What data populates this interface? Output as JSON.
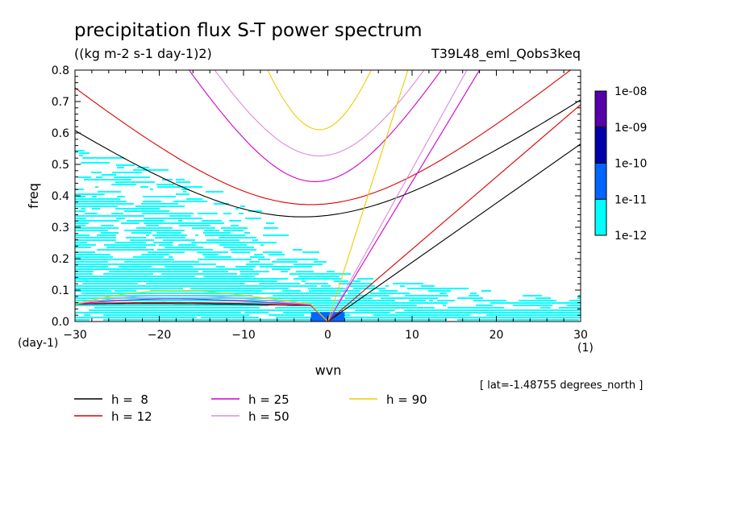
{
  "chart_data": {
    "type": "heatmap",
    "title": "precipitation flux S-T power spectrum",
    "subtitle": "((kg m-2 s-1 day-1)2)",
    "run_label": "T39L48_eml_Qobs3keq",
    "xlabel": "wvn",
    "ylabel": "freq",
    "x_unit": "(1)",
    "y_unit": "(day-1)",
    "annotation": "[ lat=-1.48755 degrees_north ]",
    "xlim": [
      -30,
      30
    ],
    "ylim": [
      0,
      0.8
    ],
    "x_ticks": [
      -30,
      -20,
      -10,
      0,
      10,
      20,
      30
    ],
    "y_ticks": [
      0.0,
      0.1,
      0.2,
      0.3,
      0.4,
      0.5,
      0.6,
      0.7,
      0.8
    ],
    "x_tick_labels": [
      "−30",
      "−20",
      "−10",
      "0",
      "10",
      "20",
      "30"
    ],
    "y_tick_labels": [
      "0.0",
      "0.1",
      "0.2",
      "0.3",
      "0.4",
      "0.5",
      "0.6",
      "0.7",
      "0.8"
    ],
    "colorbar": {
      "levels": [
        "1e-12",
        "1e-11",
        "1e-10",
        "1e-09",
        "1e-08"
      ],
      "colors": [
        "#00ffff",
        "#0066ff",
        "#0000aa",
        "#5500aa"
      ]
    },
    "heatmap_regions": [
      {
        "level": "1e-12 to 1e-11",
        "color": "#00ffff",
        "wvn_range": [
          -30,
          30
        ],
        "freq_max_at_wvn": {
          "-30": 0.55,
          "-20": 0.48,
          "-10": 0.37,
          "0": 0.18,
          "10": 0.12,
          "20": 0.1,
          "30": 0.1
        }
      },
      {
        "level": "1e-11 to 1e-10",
        "color": "#0066ff",
        "wvn_range": [
          -2,
          2
        ],
        "freq_range": [
          0,
          0.03
        ]
      }
    ],
    "series": [
      {
        "name": "h =  8",
        "color": "#000000",
        "kelvin": [
          [
            0,
            0
          ],
          [
            30,
            0.565
          ]
        ],
        "ig_min": 0.333,
        "ig_min_wvn": -3,
        "mrg": [
          0.055,
          0.05
        ]
      },
      {
        "name": "h = 12",
        "color": "#dd0000",
        "kelvin": [
          [
            0,
            0
          ],
          [
            30,
            0.69
          ]
        ],
        "ig_min": 0.372,
        "ig_min_wvn": -2,
        "mrg": [
          0.06,
          0.05
        ]
      },
      {
        "name": "h = 25",
        "color": "#cc00cc",
        "kelvin": [
          [
            0,
            0
          ],
          [
            18,
            0.8
          ]
        ],
        "ig_min": 0.445,
        "ig_min_wvn": -1.5,
        "mrg": [
          0.075,
          0.05
        ]
      },
      {
        "name": "h = 50",
        "color": "#dd88dd",
        "kelvin": [
          [
            0,
            0
          ],
          [
            16.5,
            0.8
          ]
        ],
        "ig_min": 0.527,
        "ig_min_wvn": -1,
        "mrg": [
          0.09,
          0.05
        ]
      },
      {
        "name": "h = 90",
        "color": "#eecc00",
        "kelvin": [
          [
            0,
            0
          ],
          [
            9.5,
            0.8
          ]
        ],
        "ig_min": 0.61,
        "ig_min_wvn": -1,
        "mrg": [
          0.11,
          0.05
        ]
      }
    ]
  },
  "legend_rows": [
    [
      {
        "label": "h =  8",
        "color": "#000000"
      },
      {
        "label": "h = 25",
        "color": "#cc00cc"
      },
      {
        "label": "h = 90",
        "color": "#eecc00"
      }
    ],
    [
      {
        "label": "h = 12",
        "color": "#dd0000"
      },
      {
        "label": "h = 50",
        "color": "#dd88dd"
      }
    ]
  ]
}
